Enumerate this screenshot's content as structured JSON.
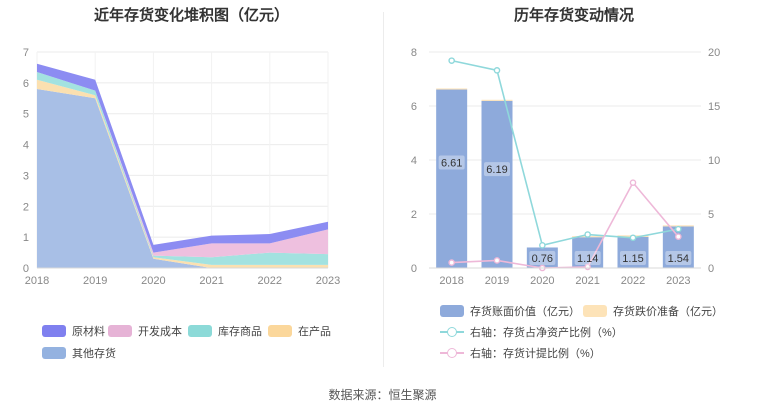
{
  "left": {
    "title": "近年存货变化堆积图（亿元）",
    "legend": [
      "原材料",
      "开发成本",
      "库存商品",
      "在产品",
      "其他存货"
    ]
  },
  "right": {
    "title": "历年存货变动情况",
    "legend": [
      "存货账面价值（亿元）",
      "存货跌价准备（亿元）",
      "右轴：存货占净资产比例（%）",
      "右轴：存货计提比例（%）"
    ]
  },
  "source": "数据来源：恒生聚源",
  "colors": {
    "raw_materials": "#8c8cf2",
    "dev_cost": "#eec0df",
    "finished_goods": "#a3e2e0",
    "wip": "#fbe0b0",
    "other": "#a8bfe6",
    "book_value_bar": "#8eaadb",
    "impairment_bar": "#fde3b8",
    "ratio_line": "#8fd8db",
    "provision_line": "#eeb8d8"
  },
  "chart_data": [
    {
      "type": "area",
      "title": "近年存货变化堆积图（亿元）",
      "x": [
        "2018",
        "2019",
        "2020",
        "2021",
        "2022",
        "2023"
      ],
      "ylim": [
        0,
        7
      ],
      "yticks": [
        0,
        1,
        2,
        3,
        4,
        5,
        6,
        7
      ],
      "stacked": true,
      "series": [
        {
          "name": "其他存货",
          "values": [
            5.8,
            5.5,
            0.3,
            0.0,
            0.0,
            0.0
          ]
        },
        {
          "name": "在产品",
          "values": [
            0.3,
            0.1,
            0.05,
            0.1,
            0.1,
            0.1
          ]
        },
        {
          "name": "库存商品",
          "values": [
            0.25,
            0.15,
            0.05,
            0.25,
            0.4,
            0.35
          ]
        },
        {
          "name": "开发成本",
          "values": [
            0.0,
            0.0,
            0.1,
            0.45,
            0.3,
            0.8
          ]
        },
        {
          "name": "原材料",
          "values": [
            0.27,
            0.35,
            0.25,
            0.25,
            0.3,
            0.25
          ]
        }
      ],
      "legend_position": "bottom"
    },
    {
      "type": "bar",
      "title": "历年存货变动情况",
      "categories": [
        "2018",
        "2019",
        "2020",
        "2021",
        "2022",
        "2023"
      ],
      "ylim": [
        0,
        8
      ],
      "yticks": [
        0,
        2,
        4,
        6,
        8
      ],
      "y2lim": [
        0,
        20
      ],
      "y2ticks": [
        0,
        5,
        10,
        15,
        20
      ],
      "series": [
        {
          "name": "存货账面价值（亿元）",
          "values": [
            6.61,
            6.19,
            0.76,
            1.14,
            1.15,
            1.54
          ],
          "labels": [
            "6.61",
            "6.19",
            "0.76",
            "1.14",
            "1.15",
            "1.54"
          ]
        },
        {
          "name": "存货跌价准备（亿元）",
          "values": [
            0.04,
            0.04,
            0.0,
            0.04,
            0.06,
            0.04
          ]
        },
        {
          "name": "右轴：存货占净资产比例（%）",
          "axis": "right",
          "type": "line",
          "values": [
            19.2,
            18.3,
            2.1,
            3.1,
            2.8,
            3.6
          ]
        },
        {
          "name": "右轴：存货计提比例（%）",
          "axis": "right",
          "type": "line",
          "values": [
            0.5,
            0.7,
            0.0,
            0.1,
            7.9,
            2.9
          ]
        }
      ],
      "legend_position": "bottom"
    }
  ]
}
